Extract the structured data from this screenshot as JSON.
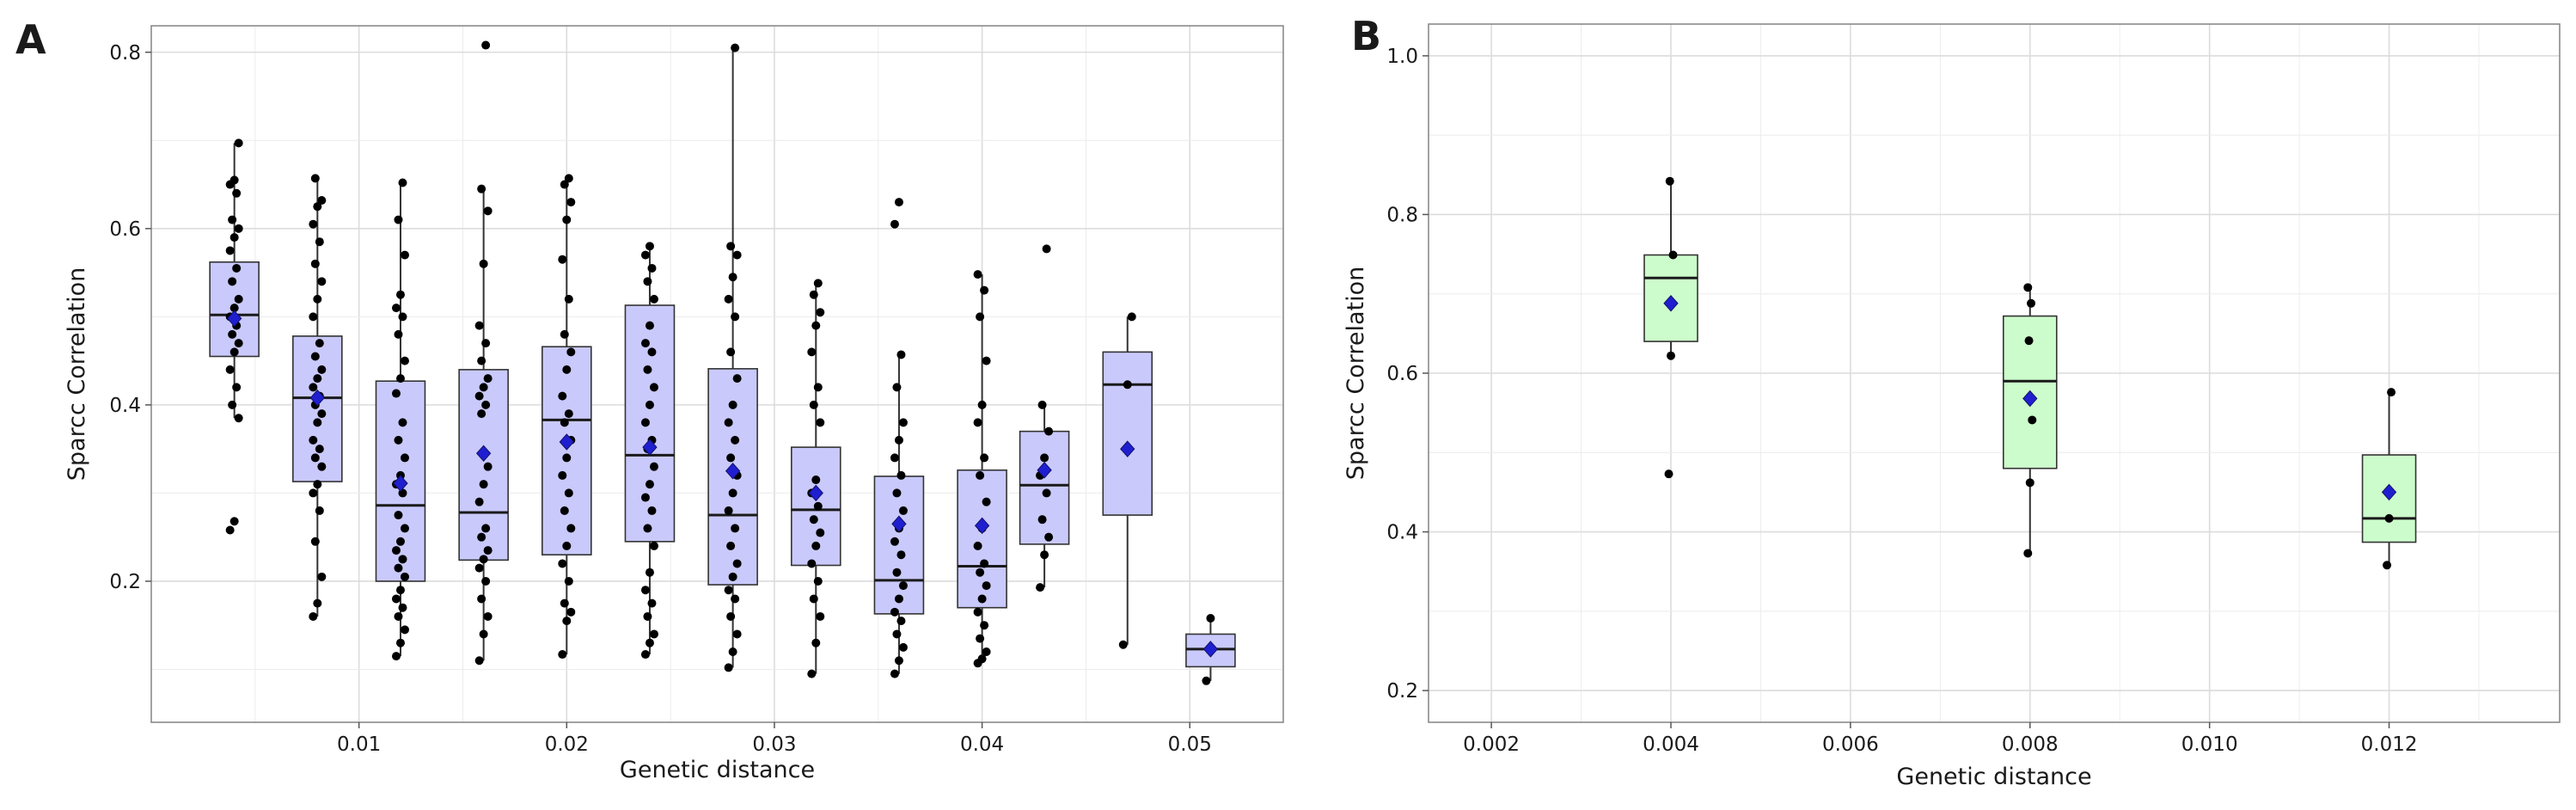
{
  "figure": {
    "panels": [
      "A",
      "B"
    ]
  },
  "chart_data": [
    {
      "panel": "A",
      "type": "box",
      "title": "",
      "xlabel": "Genetic distance",
      "ylabel": "Sparcc Correlation",
      "xlim": [
        0.0,
        0.0545
      ],
      "ylim": [
        0.04,
        0.83
      ],
      "xticks": [
        0.01,
        0.02,
        0.03,
        0.04,
        0.05
      ],
      "xtick_labels": [
        "0.01",
        "0.02",
        "0.03",
        "0.04",
        "0.05"
      ],
      "yticks": [
        0.2,
        0.4,
        0.6,
        0.8
      ],
      "ytick_labels": [
        "0.2",
        "0.4",
        "0.6",
        "0.8"
      ],
      "grid": true,
      "box_color": "#c9c9fb",
      "mean_color": "#1f1fd0",
      "boxes": [
        {
          "x": 0.004,
          "q1": 0.455,
          "median": 0.502,
          "q3": 0.562,
          "whisker_low": 0.385,
          "whisker_high": 0.697,
          "mean": 0.498,
          "points": [
            0.258,
            0.268,
            0.385,
            0.4,
            0.42,
            0.44,
            0.46,
            0.47,
            0.48,
            0.49,
            0.5,
            0.51,
            0.52,
            0.54,
            0.555,
            0.575,
            0.59,
            0.6,
            0.61,
            0.64,
            0.65,
            0.655,
            0.697
          ]
        },
        {
          "x": 0.008,
          "q1": 0.313,
          "median": 0.408,
          "q3": 0.478,
          "whisker_low": 0.16,
          "whisker_high": 0.657,
          "mean": 0.408,
          "points": [
            0.16,
            0.175,
            0.205,
            0.245,
            0.28,
            0.3,
            0.31,
            0.33,
            0.34,
            0.35,
            0.36,
            0.38,
            0.39,
            0.4,
            0.41,
            0.42,
            0.43,
            0.44,
            0.455,
            0.47,
            0.5,
            0.52,
            0.54,
            0.56,
            0.585,
            0.605,
            0.625,
            0.632,
            0.657
          ]
        },
        {
          "x": 0.012,
          "q1": 0.2,
          "median": 0.286,
          "q3": 0.427,
          "whisker_low": 0.115,
          "whisker_high": 0.652,
          "mean": 0.311,
          "points": [
            0.115,
            0.13,
            0.145,
            0.16,
            0.17,
            0.18,
            0.19,
            0.205,
            0.215,
            0.225,
            0.235,
            0.245,
            0.26,
            0.275,
            0.3,
            0.31,
            0.32,
            0.34,
            0.36,
            0.38,
            0.413,
            0.43,
            0.45,
            0.48,
            0.5,
            0.51,
            0.525,
            0.57,
            0.61,
            0.652
          ]
        },
        {
          "x": 0.016,
          "q1": 0.224,
          "median": 0.278,
          "q3": 0.44,
          "whisker_low": 0.11,
          "whisker_high": 0.645,
          "mean": 0.345,
          "points": [
            0.11,
            0.14,
            0.16,
            0.18,
            0.2,
            0.215,
            0.225,
            0.235,
            0.25,
            0.26,
            0.29,
            0.31,
            0.33,
            0.39,
            0.4,
            0.41,
            0.42,
            0.43,
            0.45,
            0.47,
            0.49,
            0.56,
            0.62,
            0.645,
            0.808
          ]
        },
        {
          "x": 0.02,
          "q1": 0.23,
          "median": 0.383,
          "q3": 0.466,
          "whisker_low": 0.117,
          "whisker_high": 0.657,
          "mean": 0.358,
          "points": [
            0.117,
            0.155,
            0.165,
            0.175,
            0.2,
            0.22,
            0.24,
            0.26,
            0.28,
            0.3,
            0.32,
            0.34,
            0.36,
            0.38,
            0.39,
            0.41,
            0.44,
            0.46,
            0.48,
            0.52,
            0.565,
            0.61,
            0.63,
            0.65,
            0.657
          ]
        },
        {
          "x": 0.024,
          "q1": 0.245,
          "median": 0.343,
          "q3": 0.513,
          "whisker_low": 0.117,
          "whisker_high": 0.58,
          "mean": 0.352,
          "points": [
            0.117,
            0.13,
            0.14,
            0.16,
            0.175,
            0.19,
            0.21,
            0.24,
            0.26,
            0.28,
            0.295,
            0.31,
            0.33,
            0.35,
            0.36,
            0.38,
            0.4,
            0.42,
            0.44,
            0.46,
            0.47,
            0.49,
            0.52,
            0.54,
            0.555,
            0.57,
            0.58
          ]
        },
        {
          "x": 0.028,
          "q1": 0.196,
          "median": 0.275,
          "q3": 0.441,
          "whisker_low": 0.102,
          "whisker_high": 0.805,
          "mean": 0.325,
          "points": [
            0.102,
            0.12,
            0.14,
            0.16,
            0.18,
            0.19,
            0.205,
            0.22,
            0.24,
            0.26,
            0.28,
            0.3,
            0.32,
            0.34,
            0.36,
            0.38,
            0.4,
            0.43,
            0.46,
            0.5,
            0.52,
            0.545,
            0.57,
            0.58,
            0.805
          ]
        },
        {
          "x": 0.032,
          "q1": 0.218,
          "median": 0.281,
          "q3": 0.352,
          "whisker_low": 0.095,
          "whisker_high": 0.538,
          "mean": 0.3,
          "points": [
            0.095,
            0.13,
            0.16,
            0.18,
            0.2,
            0.22,
            0.24,
            0.255,
            0.27,
            0.285,
            0.3,
            0.315,
            0.38,
            0.4,
            0.42,
            0.46,
            0.49,
            0.505,
            0.525,
            0.538
          ]
        },
        {
          "x": 0.036,
          "q1": 0.163,
          "median": 0.201,
          "q3": 0.319,
          "whisker_low": 0.095,
          "whisker_high": 0.457,
          "mean": 0.265,
          "points": [
            0.095,
            0.11,
            0.125,
            0.14,
            0.155,
            0.165,
            0.18,
            0.195,
            0.21,
            0.23,
            0.245,
            0.26,
            0.28,
            0.3,
            0.32,
            0.34,
            0.36,
            0.38,
            0.42,
            0.457,
            0.605,
            0.63
          ]
        },
        {
          "x": 0.04,
          "q1": 0.17,
          "median": 0.217,
          "q3": 0.326,
          "whisker_low": 0.107,
          "whisker_high": 0.548,
          "mean": 0.263,
          "points": [
            0.107,
            0.112,
            0.12,
            0.135,
            0.15,
            0.165,
            0.18,
            0.195,
            0.21,
            0.22,
            0.24,
            0.26,
            0.29,
            0.32,
            0.34,
            0.38,
            0.4,
            0.45,
            0.5,
            0.53,
            0.548
          ]
        },
        {
          "x": 0.043,
          "q1": 0.242,
          "median": 0.309,
          "q3": 0.37,
          "whisker_low": 0.193,
          "whisker_high": 0.4,
          "mean": 0.326,
          "points": [
            0.193,
            0.23,
            0.25,
            0.27,
            0.3,
            0.32,
            0.34,
            0.37,
            0.4,
            0.577
          ]
        },
        {
          "x": 0.047,
          "q1": 0.275,
          "median": 0.423,
          "q3": 0.46,
          "whisker_low": 0.128,
          "whisker_high": 0.5,
          "mean": 0.35,
          "points": [
            0.128,
            0.423,
            0.5
          ]
        },
        {
          "x": 0.051,
          "q1": 0.103,
          "median": 0.123,
          "q3": 0.14,
          "whisker_low": 0.087,
          "whisker_high": 0.158,
          "mean": 0.123,
          "points": [
            0.087,
            0.158
          ]
        }
      ]
    },
    {
      "panel": "B",
      "type": "box",
      "title": "",
      "xlabel": "Genetic distance",
      "ylabel": "Sparcc Correlation",
      "xlim": [
        0.0013,
        0.0139
      ],
      "ylim": [
        0.16,
        1.04
      ],
      "xticks": [
        0.002,
        0.004,
        0.006,
        0.008,
        0.01,
        0.012
      ],
      "xtick_labels": [
        "0.002",
        "0.004",
        "0.006",
        "0.008",
        "0.010",
        "0.012"
      ],
      "yticks": [
        0.2,
        0.4,
        0.6,
        0.8,
        1.0
      ],
      "ytick_labels": [
        "0.2",
        "0.4",
        "0.6",
        "0.8",
        "1.0"
      ],
      "grid": true,
      "box_color": "#ccfccc",
      "mean_color": "#1f1fd0",
      "boxes": [
        {
          "x": 0.004,
          "q1": 0.64,
          "median": 0.72,
          "q3": 0.749,
          "whisker_low": 0.622,
          "whisker_high": 0.842,
          "mean": 0.688,
          "points": [
            0.473,
            0.622,
            0.749,
            0.842
          ]
        },
        {
          "x": 0.008,
          "q1": 0.48,
          "median": 0.59,
          "q3": 0.672,
          "whisker_low": 0.373,
          "whisker_high": 0.708,
          "mean": 0.568,
          "points": [
            0.373,
            0.462,
            0.541,
            0.641,
            0.688,
            0.708
          ]
        },
        {
          "x": 0.012,
          "q1": 0.387,
          "median": 0.417,
          "q3": 0.497,
          "whisker_low": 0.358,
          "whisker_high": 0.576,
          "mean": 0.45,
          "points": [
            0.358,
            0.417,
            0.576
          ]
        }
      ]
    }
  ]
}
